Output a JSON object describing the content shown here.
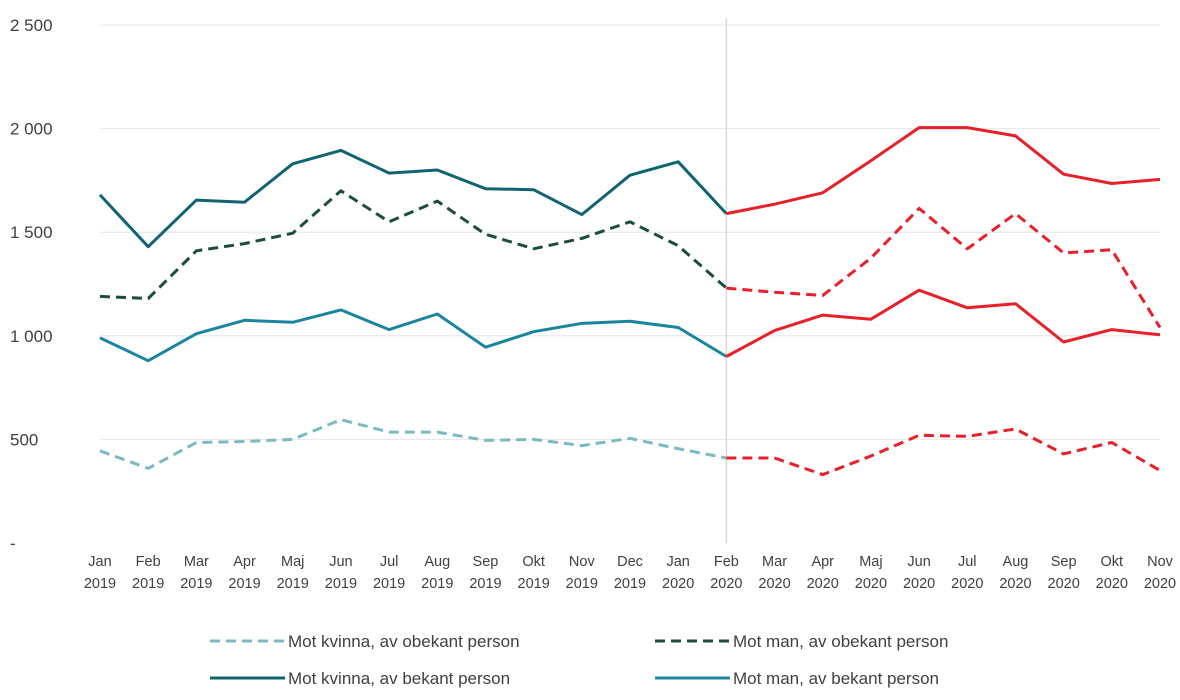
{
  "chart_data": {
    "type": "line",
    "x": [
      [
        "Jan",
        "2019"
      ],
      [
        "Feb",
        "2019"
      ],
      [
        "Mar",
        "2019"
      ],
      [
        "Apr",
        "2019"
      ],
      [
        "Maj",
        "2019"
      ],
      [
        "Jun",
        "2019"
      ],
      [
        "Jul",
        "2019"
      ],
      [
        "Aug",
        "2019"
      ],
      [
        "Sep",
        "2019"
      ],
      [
        "Okt",
        "2019"
      ],
      [
        "Nov",
        "2019"
      ],
      [
        "Dec",
        "2019"
      ],
      [
        "Jan",
        "2020"
      ],
      [
        "Feb",
        "2020"
      ],
      [
        "Mar",
        "2020"
      ],
      [
        "Apr",
        "2020"
      ],
      [
        "Maj",
        "2020"
      ],
      [
        "Jun",
        "2020"
      ],
      [
        "Jul",
        "2020"
      ],
      [
        "Aug",
        "2020"
      ],
      [
        "Sep",
        "2020"
      ],
      [
        "Okt",
        "2020"
      ],
      [
        "Nov",
        "2020"
      ]
    ],
    "y_ticks": [
      {
        "value": 0,
        "label": "-"
      },
      {
        "value": 500,
        "label": "500"
      },
      {
        "value": 1000,
        "label": "1 000"
      },
      {
        "value": 1500,
        "label": "1 500"
      },
      {
        "value": 2000,
        "label": "2 000"
      },
      {
        "value": 2500,
        "label": "2 500"
      }
    ],
    "ylim": [
      0,
      2500
    ],
    "grid": "horizontal",
    "reference_line_at": "Feb 2020",
    "highlight_from": "Feb 2020",
    "highlight_color": "#e8202a",
    "legend_position": "bottom",
    "series": [
      {
        "name": "Mot kvinna, av obekant person",
        "style": "dashed",
        "color": "#7bbbc0",
        "values": [
          445,
          360,
          485,
          490,
          500,
          595,
          535,
          535,
          495,
          500,
          470,
          505,
          455,
          410,
          410,
          330,
          420,
          520,
          515,
          550,
          430,
          485,
          350
        ]
      },
      {
        "name": "Mot man, av obekant person",
        "style": "dashed",
        "color": "#1b4d3e",
        "values": [
          1190,
          1180,
          1410,
          1445,
          1495,
          1700,
          1550,
          1650,
          1490,
          1420,
          1470,
          1550,
          1435,
          1230,
          1210,
          1195,
          1375,
          1615,
          1420,
          1590,
          1400,
          1415,
          1040
        ]
      },
      {
        "name": "Mot kvinna, av bekant person",
        "style": "solid",
        "color": "#0f6470",
        "values": [
          1680,
          1430,
          1655,
          1645,
          1830,
          1895,
          1785,
          1800,
          1710,
          1705,
          1585,
          1775,
          1840,
          1590,
          1635,
          1690,
          1845,
          2005,
          2005,
          1965,
          1780,
          1735,
          1755
        ]
      },
      {
        "name": "Mot man, av bekant person",
        "style": "solid",
        "color": "#1b85a0",
        "values": [
          990,
          880,
          1010,
          1075,
          1065,
          1125,
          1030,
          1105,
          945,
          1020,
          1060,
          1070,
          1040,
          900,
          1025,
          1100,
          1080,
          1220,
          1135,
          1155,
          970,
          1030,
          1005
        ]
      }
    ]
  }
}
